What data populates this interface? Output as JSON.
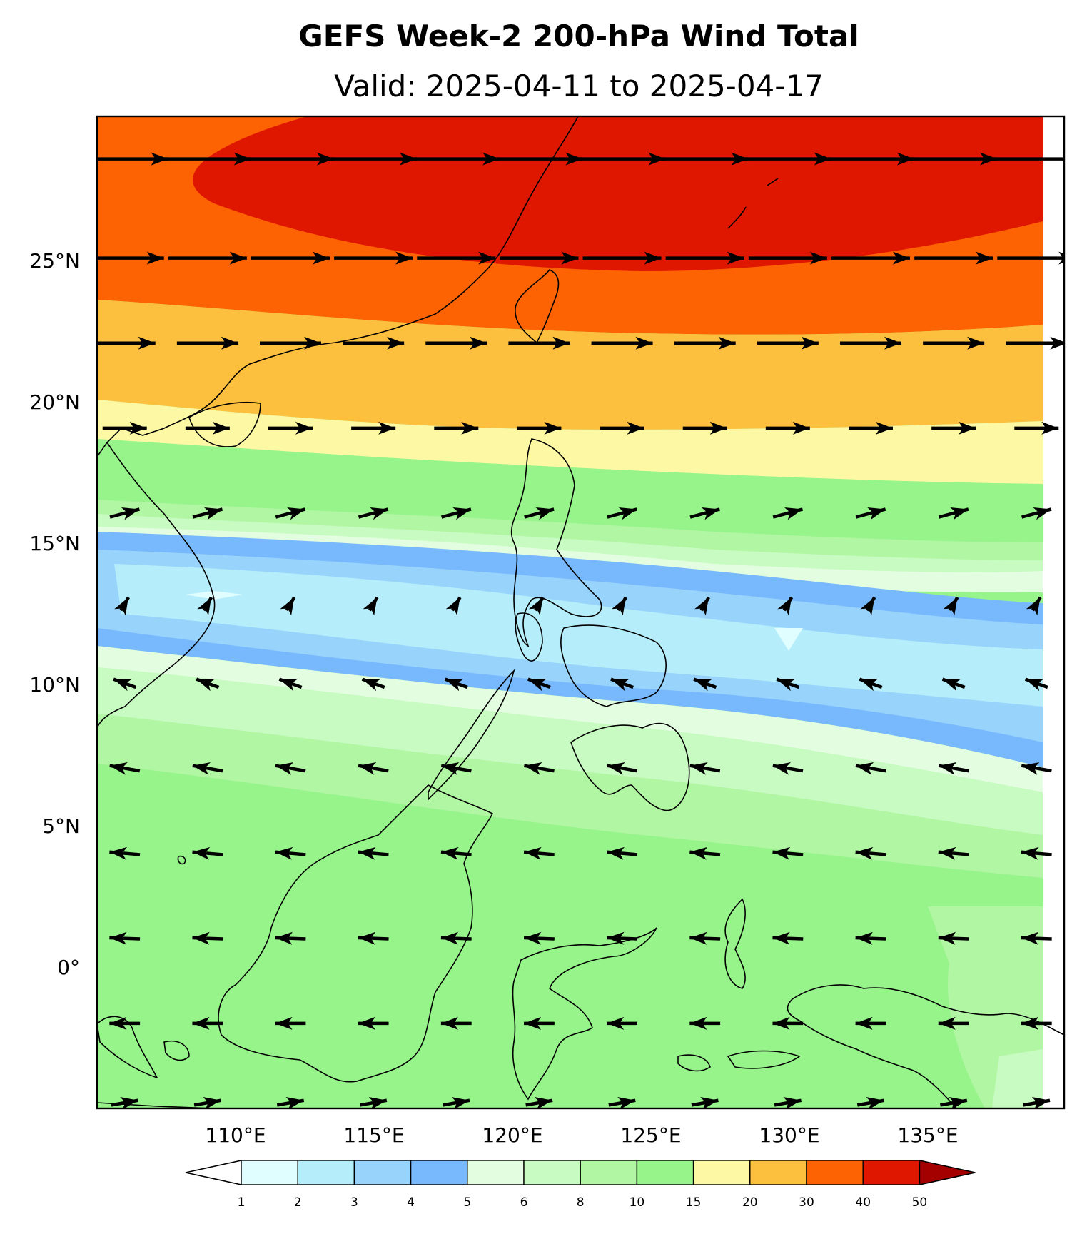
{
  "map": {
    "title": "GEFS Week-2 200-hPa Wind Total",
    "subtitle": "Valid: 2025-04-11 to 2025-04-17",
    "extent": {
      "lon": [
        105,
        140
      ],
      "lat": [
        -5,
        30
      ]
    },
    "lat_ticks": [
      "25°N",
      "20°N",
      "15°N",
      "10°N",
      "5°N",
      "0°"
    ],
    "lon_ticks": [
      "110°E",
      "115°E",
      "120°E",
      "125°E",
      "130°E",
      "135°E"
    ],
    "shading": "200-hPa total wind speed (filled contours, no units label printed)",
    "features": [
      "coastlines",
      "national/provincial boundaries",
      "wind vectors"
    ]
  },
  "colorbar": {
    "levels": [
      "1",
      "2",
      "3",
      "4",
      "5",
      "6",
      "8",
      "10",
      "15",
      "20",
      "30",
      "40",
      "50"
    ],
    "colors": [
      "#e0fdff",
      "#b5eefa",
      "#97d3fb",
      "#78b8fc",
      "#e3fde0",
      "#c8fbc1",
      "#b1f6a3",
      "#97f48b",
      "#fcf8a4",
      "#fdbf3e",
      "#fd6303",
      "#e01700"
    ],
    "under_color": "#ffffff",
    "over_color": "#a40000"
  },
  "wind_field": {
    "rows_lat": [
      28.5,
      25,
      22,
      19,
      16,
      12.8,
      10,
      7,
      4,
      1,
      -2,
      -4.8
    ],
    "speed_band": [
      {
        "lat": 28.5,
        "speed": 45,
        "direction_deg": 90
      },
      {
        "lat": 25,
        "speed": 40,
        "direction_deg": 90
      },
      {
        "lat": 22,
        "speed": 30,
        "direction_deg": 90
      },
      {
        "lat": 19,
        "speed": 20,
        "direction_deg": 90
      },
      {
        "lat": 16,
        "speed": 12,
        "direction_deg": 75
      },
      {
        "lat": 12.8,
        "speed": 3,
        "direction_deg": 30
      },
      {
        "lat": 10,
        "speed": 8,
        "direction_deg": 290
      },
      {
        "lat": 7,
        "speed": 12,
        "direction_deg": 280
      },
      {
        "lat": 4,
        "speed": 12,
        "direction_deg": 275
      },
      {
        "lat": 1,
        "speed": 12,
        "direction_deg": 272
      },
      {
        "lat": -2,
        "speed": 12,
        "direction_deg": 270
      },
      {
        "lat": -4.8,
        "speed": 10,
        "direction_deg": 80
      }
    ]
  }
}
